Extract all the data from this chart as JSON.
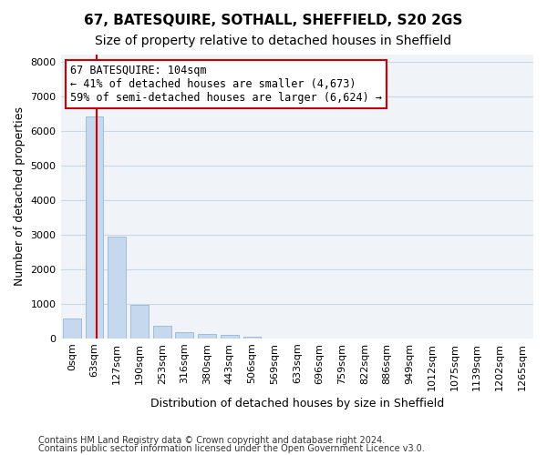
{
  "title": "67, BATESQUIRE, SOTHALL, SHEFFIELD, S20 2GS",
  "subtitle": "Size of property relative to detached houses in Sheffield",
  "xlabel": "Distribution of detached houses by size in Sheffield",
  "ylabel": "Number of detached properties",
  "bar_color": "#c5d8ed",
  "bar_edge_color": "#a0bcd8",
  "grid_color": "#c8d8e8",
  "background_color": "#f0f4f8",
  "bins": [
    "0sqm",
    "63sqm",
    "127sqm",
    "190sqm",
    "253sqm",
    "316sqm",
    "380sqm",
    "443sqm",
    "506sqm",
    "569sqm",
    "633sqm",
    "696sqm",
    "759sqm",
    "822sqm",
    "886sqm",
    "949sqm",
    "1012sqm",
    "1075sqm",
    "1139sqm",
    "1202sqm",
    "1265sqm"
  ],
  "values": [
    570,
    6400,
    2930,
    980,
    350,
    170,
    120,
    95,
    60,
    0,
    0,
    0,
    0,
    0,
    0,
    0,
    0,
    0,
    0,
    0,
    0
  ],
  "property_size": 104,
  "red_line_color": "#cc0000",
  "annotation_text": "67 BATESQUIRE: 104sqm\n← 41% of detached houses are smaller (4,673)\n59% of semi-detached houses are larger (6,624) →",
  "annotation_box_color": "#ffffff",
  "annotation_box_edge_color": "#cc0000",
  "ylim": [
    0,
    8200
  ],
  "yticks": [
    0,
    1000,
    2000,
    3000,
    4000,
    5000,
    6000,
    7000,
    8000
  ],
  "footer_line1": "Contains HM Land Registry data © Crown copyright and database right 2024.",
  "footer_line2": "Contains public sector information licensed under the Open Government Licence v3.0.",
  "title_fontsize": 11,
  "subtitle_fontsize": 10,
  "axis_label_fontsize": 9,
  "tick_fontsize": 8,
  "annotation_fontsize": 8.5,
  "footer_fontsize": 7
}
